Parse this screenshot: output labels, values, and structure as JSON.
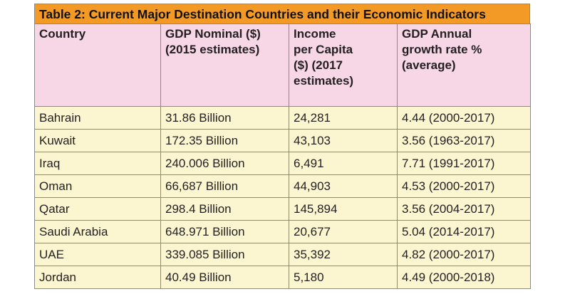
{
  "title": "Table 2: Current Major Destination Countries and their Economic Indicators",
  "headers": [
    "Country",
    "GDP Nominal ($)\n(2015 estimates)",
    "Income\nper Capita\n($) (2017\nestimates)",
    "GDP Annual\ngrowth rate %\n(average)"
  ],
  "rows": [
    [
      "Bahrain",
      "31.86 Billion",
      "24,281",
      " 4.44 (2000-2017)"
    ],
    [
      "Kuwait",
      "172.35 Billion",
      "43,103",
      "3.56 (1963-2017)"
    ],
    [
      "Iraq",
      "240.006 Billion",
      "6,491",
      "7.71 (1991-2017)"
    ],
    [
      "Oman",
      "66,687 Billion",
      "44,903",
      "4.53 (2000-2017)"
    ],
    [
      "Qatar",
      "298.4 Billion",
      "145,894",
      "3.56 (2004-2017)"
    ],
    [
      "Saudi Arabia",
      "648.971 Billion",
      "20,677",
      "5.04 (2014-2017)"
    ],
    [
      "UAE",
      "339.085 Billion",
      "35,392",
      "4.82 (2000-2017)"
    ],
    [
      "Jordan",
      "40.49 Billion",
      "5,180",
      "4.49 (2000-2018)"
    ]
  ],
  "colors": {
    "title_bg": "#f39a26",
    "header_bg": "#f7d6e6",
    "row_bg": "#fbf6cf"
  }
}
